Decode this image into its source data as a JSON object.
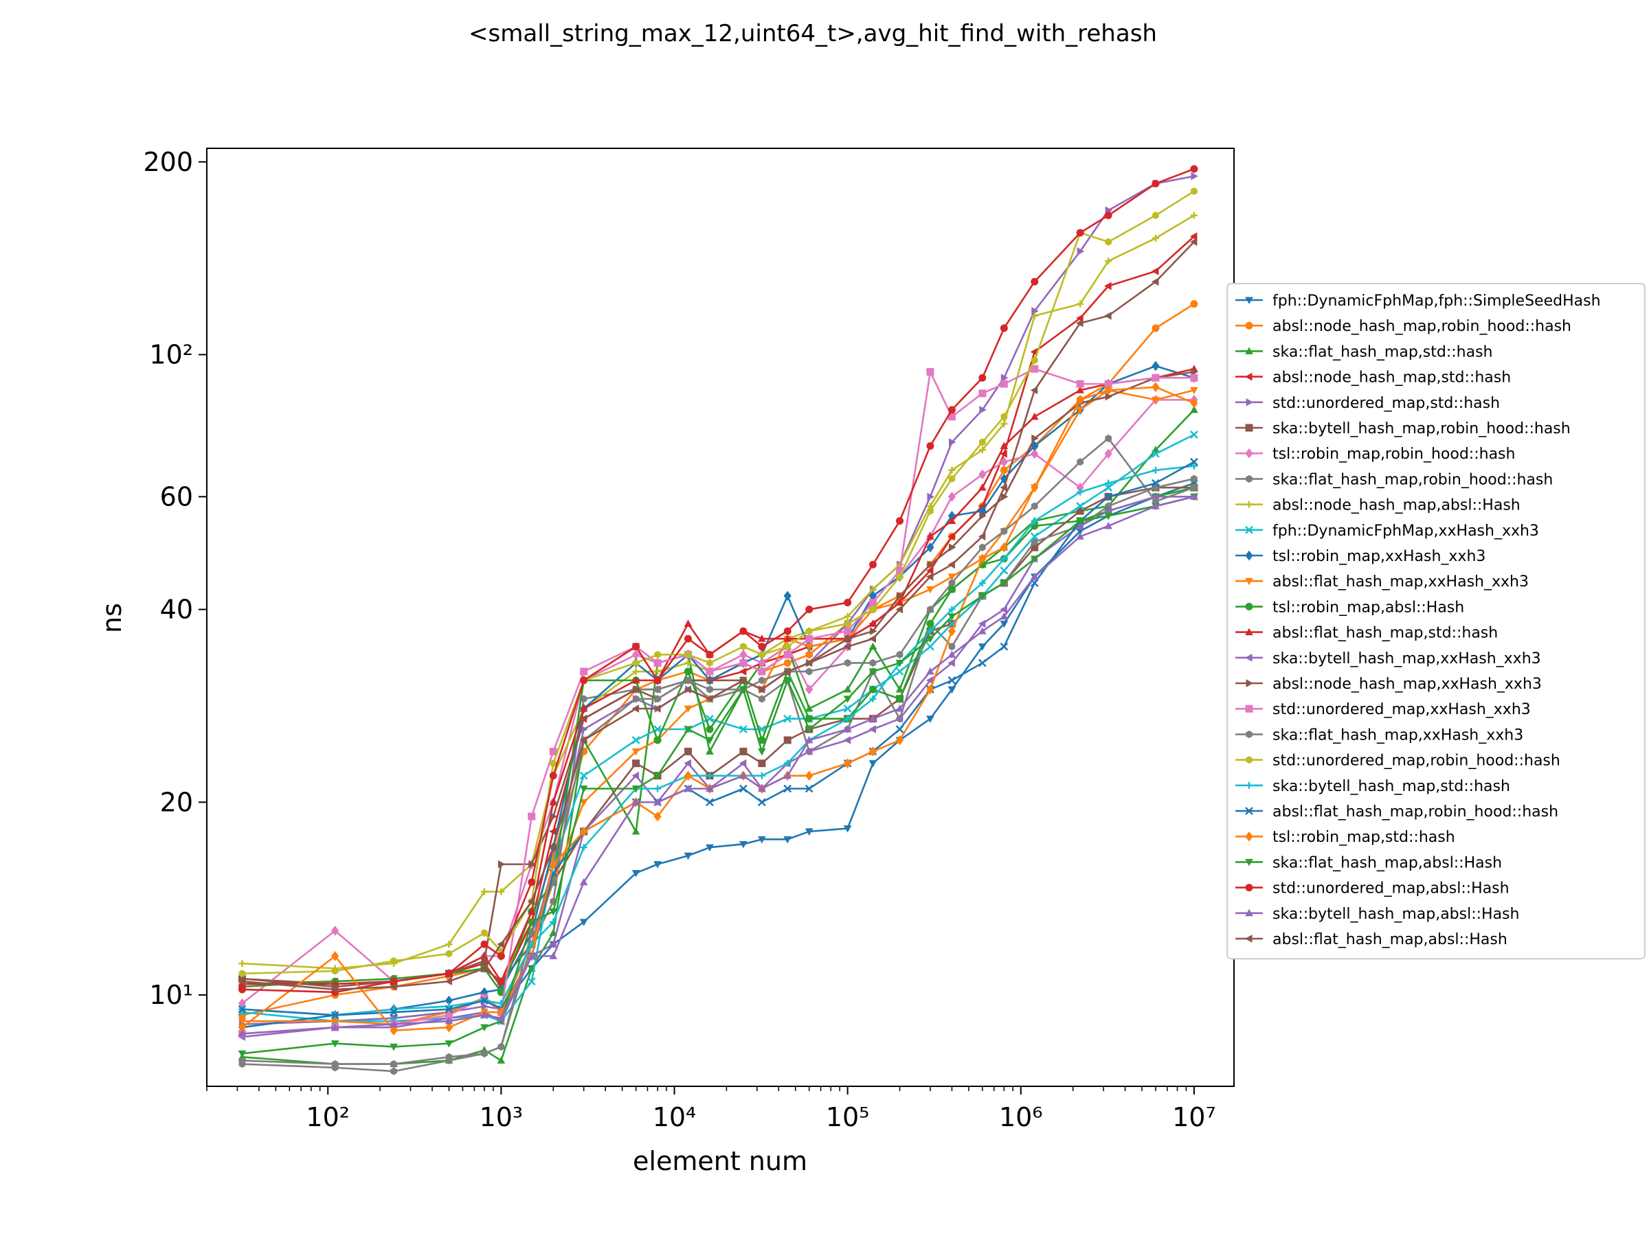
{
  "chart_data": {
    "type": "line",
    "title": "<small_string_max_12,uint64_t>,avg_hit_find_with_rehash",
    "xlabel": "element num",
    "ylabel": "ns",
    "xscale": "log",
    "yscale": "log",
    "xlim": [
      20,
      17000000
    ],
    "ylim": [
      7.2,
      210
    ],
    "legend_position": "right",
    "x_ticks": [
      {
        "value": 100,
        "label": "10²"
      },
      {
        "value": 1000,
        "label": "10³"
      },
      {
        "value": 10000,
        "label": "10⁴"
      },
      {
        "value": 100000,
        "label": "10⁵"
      },
      {
        "value": 1000000,
        "label": "10⁶"
      },
      {
        "value": 10000000,
        "label": "10⁷"
      }
    ],
    "y_ticks": [
      {
        "value": 10,
        "label": "10¹"
      },
      {
        "value": 20,
        "label": "20"
      },
      {
        "value": 40,
        "label": "40"
      },
      {
        "value": 60,
        "label": "60"
      },
      {
        "value": 100,
        "label": "10²"
      },
      {
        "value": 200,
        "label": "200"
      }
    ],
    "x": [
      32,
      110,
      240,
      500,
      800,
      1000,
      1500,
      2000,
      3000,
      6000,
      8000,
      12000,
      16000,
      25000,
      32000,
      45000,
      60000,
      100000,
      140000,
      200000,
      300000,
      400000,
      600000,
      800000,
      1200000,
      2200000,
      3200000,
      6000000,
      10000000
    ],
    "series": [
      {
        "name": "fph::DynamicFphMap,fph::SimpleSeedHash",
        "color": "#1f77b4",
        "marker": "tri_down",
        "values": [
          9.1,
          9.1,
          9.2,
          9.4,
          9.9,
          9.5,
          11.0,
          12.0,
          13.0,
          15.5,
          16.0,
          16.5,
          17.0,
          17.2,
          17.5,
          17.5,
          18.0,
          18.2,
          23,
          25,
          27,
          30,
          35,
          38,
          45,
          53,
          56,
          60,
          63
        ]
      },
      {
        "name": "absl::node_hash_map,robin_hood::hash",
        "color": "#ff7f0e",
        "marker": "circle",
        "values": [
          9.3,
          10.0,
          10.3,
          10.7,
          11.0,
          10.5,
          13.0,
          16.5,
          24,
          30,
          31,
          32,
          31,
          33,
          32,
          33,
          34,
          38,
          40,
          42,
          47,
          52,
          58,
          66,
          72,
          85,
          90,
          110,
          120
        ]
      },
      {
        "name": "ska::flat_hash_map,std::hash",
        "color": "#2ca02c",
        "marker": "tri_up",
        "values": [
          8.0,
          7.8,
          7.8,
          7.9,
          8.2,
          7.9,
          11.0,
          12.5,
          25,
          18,
          33,
          34,
          24,
          30,
          33,
          35,
          28,
          30,
          35,
          30,
          40,
          43,
          47,
          50,
          55,
          57,
          58,
          71,
          82
        ]
      },
      {
        "name": "absl::node_hash_map,std::hash",
        "color": "#d62728",
        "marker": "tri_left",
        "values": [
          10.4,
          10.5,
          10.6,
          10.8,
          11.2,
          10.3,
          13.0,
          18.0,
          27,
          30,
          30,
          31,
          31,
          32,
          33,
          34,
          35,
          36,
          38,
          41,
          46,
          52,
          58,
          70,
          101,
          114,
          128,
          135,
          153
        ]
      },
      {
        "name": "std::unordered_map,std::hash",
        "color": "#9467bd",
        "marker": "tri_right",
        "values": [
          9.0,
          9.1,
          9.2,
          9.4,
          9.6,
          9.5,
          12.0,
          16.0,
          26,
          29,
          28,
          30,
          29,
          31,
          30,
          32,
          33,
          38,
          43,
          47,
          60,
          73,
          82,
          92,
          117,
          145,
          168,
          185,
          190
        ]
      },
      {
        "name": "ska::bytell_hash_map,robin_hood::hash",
        "color": "#8c564b",
        "marker": "square",
        "values": [
          10.6,
          10.4,
          10.5,
          10.8,
          11.0,
          10.5,
          12.0,
          15.0,
          18,
          23,
          22,
          24,
          22,
          24,
          23,
          25,
          26,
          27,
          27,
          29,
          37,
          38,
          42,
          44,
          50,
          57,
          60,
          62,
          62
        ]
      },
      {
        "name": "tsl::robin_map,robin_hood::hash",
        "color": "#e377c2",
        "marker": "diamond",
        "values": [
          9.7,
          12.6,
          10.5,
          10.8,
          11.5,
          11.5,
          16.0,
          20.0,
          31,
          34,
          33,
          34,
          32,
          34,
          33,
          35,
          30,
          35,
          42,
          45,
          52,
          60,
          65,
          68,
          70,
          62,
          70,
          85,
          85
        ]
      },
      {
        "name": "ska::flat_hash_map,robin_hood::hash",
        "color": "#7f7f7f",
        "marker": "hexagon",
        "values": [
          7.8,
          7.7,
          7.6,
          7.9,
          8.1,
          8.3,
          12.0,
          14.0,
          29,
          30,
          30,
          31,
          29,
          30,
          29,
          31,
          24,
          26,
          32,
          27,
          38,
          35,
          42,
          44,
          51,
          54,
          58,
          62,
          64
        ]
      },
      {
        "name": "absl::node_hash_map,absl::Hash",
        "color": "#bcbd22",
        "marker": "plus",
        "values": [
          11.2,
          11.0,
          11.2,
          12.0,
          14.5,
          14.5,
          16.0,
          22.0,
          28,
          32,
          32,
          33,
          32,
          33,
          34,
          36,
          37,
          39,
          43,
          47,
          58,
          66,
          71,
          78,
          115,
          120,
          140,
          152,
          165
        ]
      },
      {
        "name": "fph::DynamicFphMap,xxHash_xxh3",
        "color": "#17becf",
        "marker": "x",
        "values": [
          9.4,
          9.1,
          9.1,
          9.2,
          9.3,
          9.1,
          10.5,
          16.0,
          22,
          25,
          26,
          26,
          27,
          26,
          26,
          27,
          27,
          28,
          30,
          32,
          35,
          38,
          42,
          46,
          52,
          58,
          62,
          70,
          75
        ]
      },
      {
        "name": "tsl::robin_map,xxHash_xxh3",
        "color": "#1f77b4",
        "marker": "diamond",
        "values": [
          8.9,
          9.3,
          9.5,
          9.8,
          10.1,
          10.2,
          12.5,
          17.0,
          28,
          33,
          31,
          34,
          31,
          33,
          34,
          42,
          35,
          36,
          42,
          45,
          50,
          56,
          57,
          64,
          72,
          82,
          90,
          96,
          92
        ]
      },
      {
        "name": "absl::flat_hash_map,xxHash_xxh3",
        "color": "#ff7f0e",
        "marker": "tri_down",
        "values": [
          9.1,
          9.1,
          9.0,
          9.4,
          9.9,
          9.5,
          12.0,
          15.0,
          20,
          24,
          25,
          28,
          29,
          31,
          30,
          36,
          35,
          36,
          40,
          41,
          43,
          45,
          48,
          53,
          62,
          82,
          88,
          85,
          88
        ]
      },
      {
        "name": "tsl::robin_map,absl::Hash",
        "color": "#2ca02c",
        "marker": "circle",
        "values": [
          10.3,
          10.5,
          10.6,
          10.8,
          11.0,
          10.1,
          13.5,
          15.0,
          31,
          31,
          25,
          32,
          26,
          31,
          25,
          32,
          27,
          27,
          30,
          29,
          38,
          43,
          47,
          48,
          54,
          55,
          57,
          60,
          62
        ]
      },
      {
        "name": "absl::flat_hash_map,std::hash",
        "color": "#d62728",
        "marker": "tri_up",
        "values": [
          10.4,
          10.4,
          10.5,
          10.8,
          11.5,
          10.5,
          13.5,
          20.0,
          28,
          31,
          31,
          38,
          34,
          37,
          36,
          36,
          36,
          36,
          38,
          41,
          52,
          55,
          62,
          72,
          80,
          88,
          90,
          92,
          95
        ]
      },
      {
        "name": "ska::bytell_hash_map,xxHash_xxh3",
        "color": "#9467bd",
        "marker": "tri_left",
        "values": [
          8.6,
          8.9,
          8.9,
          9.2,
          9.4,
          9.1,
          11.5,
          12.0,
          18,
          22,
          20,
          23,
          21,
          23,
          21,
          23,
          24,
          25,
          26,
          27,
          31,
          33,
          38,
          40,
          48,
          54,
          57,
          60,
          60
        ]
      },
      {
        "name": "absl::node_hash_map,xxHash_xxh3",
        "color": "#8c564b",
        "marker": "tri_right",
        "values": [
          10.6,
          10.3,
          10.5,
          10.8,
          11.3,
          16.0,
          16.0,
          19.0,
          27,
          30,
          29,
          31,
          31,
          31,
          30,
          32,
          33,
          36,
          37,
          42,
          47,
          50,
          56,
          60,
          74,
          84,
          86,
          92,
          94
        ]
      },
      {
        "name": "std::unordered_map,xxHash_xxh3",
        "color": "#e377c2",
        "marker": "square",
        "values": [
          8.7,
          8.9,
          9.0,
          9.3,
          9.9,
          9.4,
          19.0,
          24.0,
          32,
          35,
          33,
          34,
          32,
          33,
          32,
          34,
          36,
          37,
          41,
          46,
          94,
          80,
          87,
          90,
          95,
          90,
          90,
          92,
          92
        ]
      },
      {
        "name": "ska::flat_hash_map,xxHash_xxh3",
        "color": "#7f7f7f",
        "marker": "hexagon",
        "values": [
          7.9,
          7.8,
          7.8,
          8.0,
          8.1,
          8.3,
          12.5,
          15.0,
          25,
          29,
          29,
          31,
          30,
          30,
          31,
          32,
          32,
          33,
          33,
          34,
          40,
          44,
          50,
          53,
          58,
          68,
          74,
          59,
          62
        ]
      },
      {
        "name": "std::unordered_map,robin_hood::hash",
        "color": "#bcbd22",
        "marker": "hexagon",
        "values": [
          10.8,
          10.9,
          11.3,
          11.6,
          12.5,
          11.7,
          14.0,
          23.0,
          31,
          33,
          34,
          34,
          33,
          35,
          34,
          35,
          37,
          38,
          40,
          45,
          57,
          64,
          73,
          80,
          98,
          155,
          150,
          165,
          180
        ]
      },
      {
        "name": "ska::bytell_hash_map,std::hash",
        "color": "#17becf",
        "marker": "plus",
        "values": [
          9.5,
          9.3,
          9.5,
          9.6,
          9.8,
          9.7,
          12.0,
          13.0,
          17,
          21,
          21,
          22,
          22,
          22,
          22,
          23,
          25,
          27,
          29,
          33,
          37,
          40,
          44,
          48,
          55,
          61,
          63,
          66,
          67
        ]
      },
      {
        "name": "absl::flat_hash_map,robin_hood::hash",
        "color": "#1f77b4",
        "marker": "x",
        "values": [
          9.5,
          9.3,
          9.4,
          9.5,
          9.8,
          9.5,
          11.5,
          15.5,
          18,
          20,
          20,
          21,
          20,
          21,
          20,
          21,
          21,
          23,
          24,
          26,
          30,
          31,
          33,
          35,
          44,
          55,
          60,
          63,
          68
        ]
      },
      {
        "name": "tsl::robin_map,std::hash",
        "color": "#ff7f0e",
        "marker": "diamond",
        "values": [
          8.9,
          11.5,
          8.8,
          8.9,
          9.4,
          9.4,
          11.5,
          16.0,
          18,
          20,
          19,
          22,
          21,
          22,
          21,
          22,
          22,
          23,
          24,
          25,
          30,
          37,
          48,
          50,
          62,
          85,
          88,
          89,
          84
        ]
      },
      {
        "name": "ska::flat_hash_map,absl::Hash",
        "color": "#2ca02c",
        "marker": "tri_down",
        "values": [
          8.1,
          8.4,
          8.3,
          8.4,
          8.9,
          9.1,
          13.0,
          13.5,
          21,
          21,
          22,
          26,
          25,
          30,
          24,
          31,
          26,
          29,
          32,
          33,
          36,
          39,
          42,
          44,
          48,
          55,
          56,
          58,
          60
        ]
      },
      {
        "name": "std::unordered_map,absl::Hash",
        "color": "#d62728",
        "marker": "circle",
        "values": [
          10.2,
          10.1,
          10.5,
          10.8,
          12.0,
          11.5,
          15.0,
          22.0,
          31,
          35,
          31,
          36,
          34,
          37,
          35,
          37,
          40,
          41,
          47,
          55,
          72,
          82,
          92,
          110,
          130,
          155,
          165,
          185,
          195
        ]
      },
      {
        "name": "ska::bytell_hash_map,absl::Hash",
        "color": "#9467bd",
        "marker": "tri_up",
        "values": [
          8.7,
          8.9,
          9.0,
          9.1,
          9.3,
          9.2,
          11.5,
          11.5,
          15,
          20,
          20,
          21,
          21,
          22,
          21,
          22,
          25,
          26,
          27,
          28,
          32,
          34,
          37,
          39,
          45,
          52,
          54,
          58,
          60
        ]
      },
      {
        "name": "absl::flat_hash_map,absl::Hash",
        "color": "#8c564b",
        "marker": "tri_left",
        "values": [
          10.5,
          10.2,
          10.3,
          10.5,
          11.0,
          12.0,
          14.0,
          17.0,
          25,
          28,
          28,
          30,
          29,
          31,
          30,
          32,
          33,
          35,
          36,
          40,
          45,
          47,
          52,
          62,
          88,
          112,
          115,
          130,
          150
        ]
      }
    ]
  }
}
